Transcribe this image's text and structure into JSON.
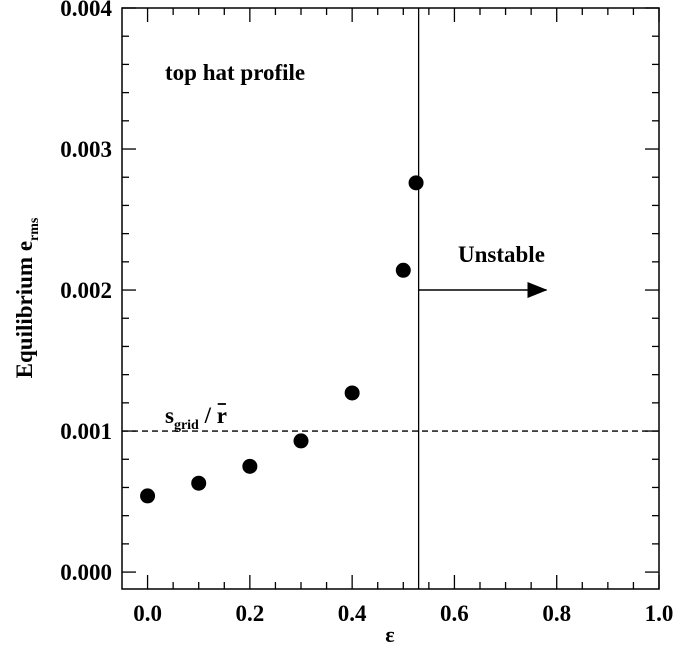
{
  "chart_data": {
    "type": "scatter",
    "xlabel": "ε",
    "ylabel": {
      "main": "Equilibrium e",
      "subscript": "rms"
    },
    "xlim": [
      -0.05,
      1.0
    ],
    "ylim": [
      -0.00012,
      0.004
    ],
    "x_ticks": [
      0.0,
      0.2,
      0.4,
      0.6,
      0.8,
      1.0
    ],
    "x_tick_labels": [
      "0.0",
      "0.2",
      "0.4",
      "0.6",
      "0.8",
      "1.0"
    ],
    "x_minor_step": 0.05,
    "y_ticks": [
      0.0,
      0.001,
      0.002,
      0.003,
      0.004
    ],
    "y_tick_labels": [
      "0.000",
      "0.001",
      "0.002",
      "0.003",
      "0.004"
    ],
    "y_minor_step": 0.0002,
    "grid": false,
    "series": [
      {
        "points": [
          {
            "x": 0.0,
            "y": 0.00054
          },
          {
            "x": 0.1,
            "y": 0.00063
          },
          {
            "x": 0.2,
            "y": 0.00075
          },
          {
            "x": 0.3,
            "y": 0.00093
          },
          {
            "x": 0.4,
            "y": 0.00127
          },
          {
            "x": 0.5,
            "y": 0.00214
          },
          {
            "x": 0.525,
            "y": 0.00276
          }
        ]
      }
    ],
    "reference_lines": {
      "horizontal_dashed_y": 0.001,
      "vertical_solid_x": 0.53
    },
    "annotations": {
      "profile": "top hat profile",
      "unstable": "Unstable",
      "unstable_arrow": {
        "x_from": 0.53,
        "x_to": 0.78,
        "y": 0.002
      },
      "sgrid_label": {
        "s": "s",
        "sub": "grid",
        "slash": " / ",
        "r": "r",
        "x": 0.08,
        "y": 0.00118
      }
    }
  }
}
